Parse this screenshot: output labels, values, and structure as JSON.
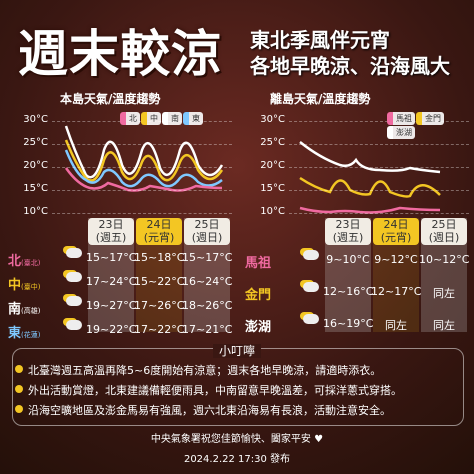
{
  "header": {
    "title": "週末較涼",
    "subtitle": [
      "東北季風伴元宵",
      "各地早晚涼、沿海風大"
    ]
  },
  "panels": [
    {
      "title": "本島天氣/溫度趨勢",
      "yaxis": [
        "30°C",
        "25°C",
        "20°C",
        "15°C",
        "10°C"
      ],
      "days": [
        {
          "date": "23日",
          "weekday": "(週五)"
        },
        {
          "date": "24日",
          "weekday": "(元宵)"
        },
        {
          "date": "25日",
          "weekday": "(週日)"
        }
      ],
      "rows": [
        {
          "name": "北",
          "area": "(臺北)",
          "temps": [
            "15~17°C",
            "15~18°C",
            "15~17°C"
          ]
        },
        {
          "name": "中",
          "area": "(臺中)",
          "temps": [
            "17~24°C",
            "15~22°C",
            "16~24°C"
          ]
        },
        {
          "name": "南",
          "area": "(高雄)",
          "temps": [
            "19~27°C",
            "17~26°C",
            "18~26°C"
          ]
        },
        {
          "name": "東",
          "area": "(花蓮)",
          "temps": [
            "19~22°C",
            "17~22°C",
            "17~21°C"
          ]
        }
      ]
    },
    {
      "title": "離島天氣/溫度趨勢",
      "yaxis": [
        "30°C",
        "25°C",
        "20°C",
        "15°C",
        "10°C"
      ],
      "days": [
        {
          "date": "23日",
          "weekday": "(週五)"
        },
        {
          "date": "24日",
          "weekday": "(元宵)"
        },
        {
          "date": "25日",
          "weekday": "(週日)"
        }
      ],
      "rows": [
        {
          "name": "馬祖",
          "temps": [
            "9~10°C",
            "9~12°C",
            "10~12°C"
          ]
        },
        {
          "name": "金門",
          "temps": [
            "12~16°C",
            "12~17°C",
            "同左"
          ]
        },
        {
          "name": "澎湖",
          "temps": [
            "16~19°C",
            "同左",
            "同左"
          ]
        }
      ]
    }
  ],
  "notes": {
    "title": "小叮嚀",
    "items": [
      "北臺灣週五高溫再降5~6度開始有涼意；週末各地早晚涼，請適時添衣。",
      "外出活動賞燈，北東建議備輕便雨具，中南留意早晚溫差，可採洋蔥式穿搭。",
      "沿海空曠地區及澎金馬易有強風，週六北東沿海易有長浪，活動注意安全。"
    ]
  },
  "footer": {
    "message": "中央氣象署祝您佳節愉快、闔家平安 ♥",
    "published": "2024.2.22 17:30 發布"
  }
}
